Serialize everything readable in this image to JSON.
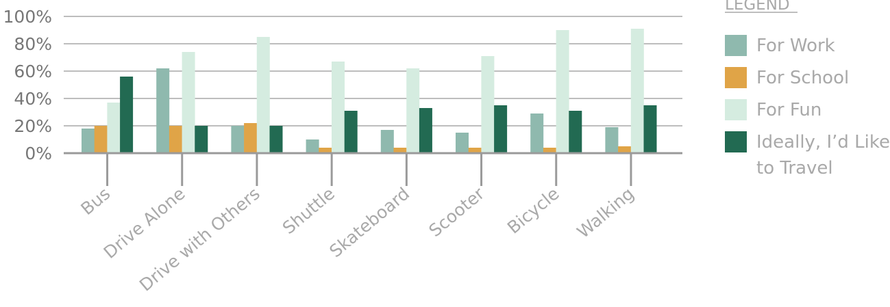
{
  "chart_data": {
    "type": "bar",
    "categories": [
      "Bus",
      "Drive Alone",
      "Drive with Others",
      "Shuttle",
      "Skateboard",
      "Scooter",
      "Bicycle",
      "Walking"
    ],
    "series": [
      {
        "name": "For Work",
        "color": "#8fb9ae",
        "values": [
          18,
          62,
          20,
          10,
          17,
          15,
          29,
          19
        ]
      },
      {
        "name": "For School",
        "color": "#e0a447",
        "values": [
          20,
          20,
          22,
          4,
          4,
          4,
          4,
          5
        ]
      },
      {
        "name": "For Fun",
        "color": "#d5ece0",
        "values": [
          37,
          74,
          85,
          67,
          62,
          71,
          90,
          91
        ]
      },
      {
        "name": "Ideally, I’d Like to Travel",
        "name_lines": [
          "Ideally, I’d Like",
          "to Travel"
        ],
        "color": "#226a52",
        "values": [
          56,
          20,
          20,
          31,
          33,
          35,
          31,
          35
        ]
      }
    ],
    "y_ticks": [
      "0%",
      "20%",
      "40%",
      "60%",
      "80%",
      "100%"
    ],
    "ylim": [
      0,
      100
    ],
    "grid": true,
    "legend": {
      "title": "LEGEND",
      "position": "right"
    }
  }
}
